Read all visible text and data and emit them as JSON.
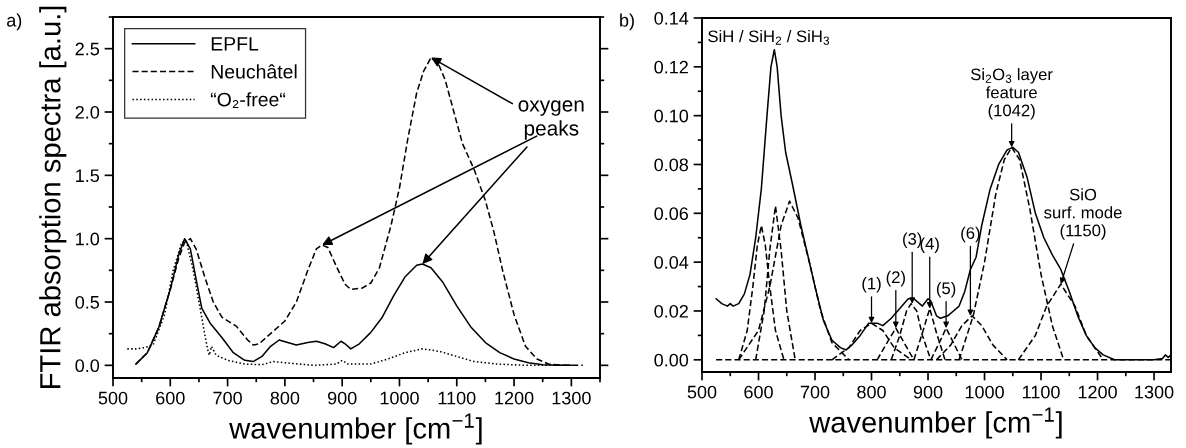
{
  "chart_data": [
    {
      "type": "line",
      "xlabel": "wavenumber [cm$^{−1}$]",
      "ylabel": "FTIR absorption spectra [a.u.]",
      "xlim": [
        500,
        1350
      ],
      "ylim": [
        -0.1,
        2.75
      ],
      "xticks": [
        500,
        600,
        700,
        800,
        900,
        1000,
        1100,
        1200,
        1300
      ],
      "yticks": [
        {
          "value": 0,
          "label": "0.0"
        },
        0.5,
        {
          "value": 1,
          "label": "1.0"
        },
        1.5,
        {
          "value": 2,
          "label": "2.0"
        },
        2.5
      ],
      "legend": "top left",
      "grid": false,
      "annotations": [
        "a)",
        {
          "text": "oxygen\npeaks",
          "x": 1055,
          "y": 2.43
        }
      ],
      "series": [
        {
          "name": "EPFL",
          "color": "#000000",
          "line_style": "solid",
          "x": [
            540,
            560,
            580,
            600,
            615,
            625,
            635,
            645,
            655,
            670,
            690,
            710,
            730,
            745,
            760,
            775,
            790,
            805,
            820,
            840,
            855,
            870,
            885,
            898,
            905,
            915,
            930,
            950,
            970,
            990,
            1010,
            1030,
            1040,
            1055,
            1075,
            1100,
            1125,
            1150,
            1175,
            1200,
            1225,
            1250,
            1280,
            1300
          ],
          "values": [
            0.01,
            0.1,
            0.3,
            0.6,
            0.88,
            1.0,
            0.92,
            0.68,
            0.45,
            0.33,
            0.22,
            0.1,
            0.04,
            0.03,
            0.07,
            0.15,
            0.2,
            0.18,
            0.16,
            0.18,
            0.19,
            0.17,
            0.14,
            0.19,
            0.17,
            0.13,
            0.17,
            0.26,
            0.38,
            0.55,
            0.7,
            0.79,
            0.8,
            0.77,
            0.66,
            0.47,
            0.3,
            0.18,
            0.1,
            0.05,
            0.02,
            0.005,
            0.0,
            0.0
          ]
        },
        {
          "name": "Neuchâtel",
          "color": "#000000",
          "line_style": "dashed",
          "x": [
            540,
            560,
            580,
            600,
            615,
            625,
            635,
            645,
            660,
            675,
            690,
            715,
            735,
            745,
            755,
            775,
            800,
            820,
            840,
            855,
            865,
            875,
            890,
            905,
            915,
            935,
            950,
            965,
            985,
            1000,
            1015,
            1030,
            1042,
            1055,
            1068,
            1080,
            1095,
            1110,
            1130,
            1150,
            1165,
            1180,
            1200,
            1220,
            1240,
            1260,
            1290,
            1320
          ],
          "values": [
            0.01,
            0.1,
            0.3,
            0.6,
            0.85,
            0.97,
            1.0,
            0.92,
            0.7,
            0.5,
            0.38,
            0.31,
            0.2,
            0.16,
            0.17,
            0.25,
            0.35,
            0.5,
            0.75,
            0.92,
            0.95,
            0.93,
            0.78,
            0.64,
            0.6,
            0.61,
            0.65,
            0.77,
            1.1,
            1.4,
            1.8,
            2.15,
            2.32,
            2.43,
            2.38,
            2.25,
            2.0,
            1.75,
            1.55,
            1.3,
            1.05,
            0.75,
            0.4,
            0.15,
            0.05,
            0.01,
            0.0,
            0.0
          ]
        },
        {
          "name": "“O₂-free“",
          "color": "#000000",
          "line_style": "dotted",
          "x": [
            525,
            540,
            555,
            570,
            590,
            605,
            620,
            628,
            640,
            650,
            660,
            665,
            668,
            672,
            680,
            700,
            730,
            760,
            780,
            800,
            850,
            890,
            900,
            910,
            950,
            980,
            1010,
            1040,
            1070,
            1100,
            1130,
            1170,
            1220,
            1300
          ],
          "values": [
            0.13,
            0.13,
            0.14,
            0.16,
            0.4,
            0.75,
            0.97,
            0.98,
            0.75,
            0.5,
            0.25,
            0.13,
            0.08,
            0.15,
            0.08,
            0.04,
            0.01,
            0.005,
            0.03,
            0.02,
            0.0,
            0.01,
            0.04,
            0.01,
            0.01,
            0.05,
            0.1,
            0.13,
            0.11,
            0.07,
            0.03,
            0.01,
            0.0,
            0.0
          ]
        }
      ]
    },
    {
      "type": "line",
      "xlabel": "wavenumber [cm$^{−1}$]",
      "xlim": [
        500,
        1330
      ],
      "ylim": [
        -0.005,
        0.14
      ],
      "xticks": [
        500,
        600,
        700,
        800,
        900,
        1000,
        1100,
        1200,
        1300
      ],
      "yticks": [
        {
          "value": 0,
          "label": "0.00"
        },
        {
          "value": 0.02,
          "label": "0.02"
        },
        {
          "value": 0.04,
          "label": "0.04"
        },
        {
          "value": 0.06,
          "label": "0.06"
        },
        {
          "value": 0.08,
          "label": "0.08"
        },
        {
          "value": 0.1,
          "label": "0.10"
        },
        {
          "value": 0.12,
          "label": "0.12"
        },
        {
          "value": 0.14,
          "label": "0.14"
        }
      ],
      "grid": false,
      "annotations": [
        "b)",
        {
          "text": "SiH / SiH$_{2}$ / SiH$_{3}$",
          "x": 628,
          "y": 0.127
        },
        {
          "text": "(1)",
          "x": 800,
          "y": 0.015
        },
        {
          "text": "(2)",
          "x": 843,
          "y": 0.013
        },
        {
          "text": "(3)",
          "x": 872,
          "y": 0.023
        },
        {
          "text": "(4)",
          "x": 903,
          "y": 0.021
        },
        {
          "text": "(5)",
          "x": 932,
          "y": 0.013
        },
        {
          "text": "(6)",
          "x": 975,
          "y": 0.018
        },
        {
          "text": "Si$_{2}$O$_{3}$ layer\nfeature\n(1042)",
          "x": 1048,
          "y": 0.087
        },
        {
          "text": "SiO\nsurf. mode\n(1150)",
          "x": 1135,
          "y": 0.031
        }
      ],
      "series": [
        {
          "color": "#000000",
          "line_style": "solid",
          "x": [
            525,
            535,
            545,
            550,
            555,
            565,
            575,
            585,
            595,
            605,
            615,
            622,
            628,
            633,
            640,
            648,
            660,
            675,
            690,
            700,
            715,
            730,
            745,
            755,
            765,
            780,
            795,
            810,
            820,
            835,
            850,
            865,
            875,
            890,
            900,
            905,
            915,
            922,
            935,
            945,
            955,
            965,
            975,
            985,
            995,
            1010,
            1025,
            1040,
            1050,
            1060,
            1075,
            1090,
            1105,
            1120,
            1135,
            1150,
            1165,
            1180,
            1195,
            1210,
            1230,
            1260,
            1300,
            1315,
            1320,
            1325,
            1330
          ],
          "values": [
            0.025,
            0.023,
            0.022,
            0.023,
            0.022,
            0.023,
            0.027,
            0.035,
            0.05,
            0.07,
            0.1,
            0.12,
            0.127,
            0.12,
            0.1,
            0.085,
            0.072,
            0.055,
            0.04,
            0.03,
            0.016,
            0.008,
            0.005,
            0.004,
            0.006,
            0.01,
            0.015,
            0.015,
            0.014,
            0.017,
            0.021,
            0.025,
            0.025,
            0.022,
            0.025,
            0.024,
            0.018,
            0.017,
            0.018,
            0.02,
            0.022,
            0.028,
            0.037,
            0.042,
            0.055,
            0.07,
            0.08,
            0.086,
            0.087,
            0.085,
            0.075,
            0.06,
            0.05,
            0.043,
            0.037,
            0.028,
            0.018,
            0.01,
            0.005,
            0.002,
            0.0,
            0.0,
            0.0,
            0.0005,
            0.002,
            0.001,
            0.002
          ]
        },
        {
          "color": "#000000",
          "line_style": "dashed",
          "x": [
            525,
            1330
          ],
          "values": [
            0,
            0
          ]
        },
        {
          "color": "#000000",
          "line_style": "dashed",
          "x": [
            565,
            580,
            590,
            598,
            605,
            612,
            620,
            630,
            645
          ],
          "values": [
            0,
            0.012,
            0.03,
            0.047,
            0.055,
            0.047,
            0.03,
            0.012,
            0
          ]
        },
        {
          "color": "#000000",
          "line_style": "dashed",
          "x": [
            595,
            610,
            620,
            630,
            640,
            650,
            665
          ],
          "values": [
            0,
            0.02,
            0.045,
            0.063,
            0.045,
            0.02,
            0
          ]
        },
        {
          "color": "#000000",
          "line_style": "dashed",
          "x": [
            565,
            600,
            620,
            640,
            655,
            670,
            690,
            710,
            730,
            760
          ],
          "values": [
            0,
            0.012,
            0.03,
            0.055,
            0.065,
            0.058,
            0.04,
            0.02,
            0.007,
            0
          ]
        },
        {
          "color": "#000000",
          "line_style": "dashed",
          "x": [
            730,
            760,
            780,
            800,
            820,
            840,
            870
          ],
          "values": [
            0,
            0.005,
            0.012,
            0.015,
            0.012,
            0.005,
            0
          ]
        },
        {
          "color": "#000000",
          "line_style": "dashed",
          "x": [
            810,
            825,
            843,
            860,
            875
          ],
          "values": [
            0,
            0.006,
            0.013,
            0.006,
            0
          ]
        },
        {
          "color": "#000000",
          "line_style": "dashed",
          "x": [
            835,
            850,
            862,
            870,
            880,
            890,
            905
          ],
          "values": [
            0,
            0.01,
            0.02,
            0.023,
            0.02,
            0.01,
            0
          ]
        },
        {
          "color": "#000000",
          "line_style": "dashed",
          "x": [
            875,
            890,
            903,
            915,
            930
          ],
          "values": [
            0,
            0.011,
            0.021,
            0.011,
            0
          ]
        },
        {
          "color": "#000000",
          "line_style": "dashed",
          "x": [
            905,
            920,
            932,
            945,
            960
          ],
          "values": [
            0,
            0.007,
            0.013,
            0.007,
            0
          ]
        },
        {
          "color": "#000000",
          "line_style": "dashed",
          "x": [
            915,
            940,
            960,
            978,
            995,
            1015,
            1040
          ],
          "values": [
            0,
            0.006,
            0.014,
            0.018,
            0.014,
            0.006,
            0
          ]
        },
        {
          "color": "#000000",
          "line_style": "dashed",
          "x": [
            955,
            980,
            1000,
            1020,
            1035,
            1048,
            1062,
            1080,
            1100,
            1120,
            1140
          ],
          "values": [
            0,
            0.018,
            0.04,
            0.068,
            0.082,
            0.087,
            0.082,
            0.062,
            0.035,
            0.014,
            0
          ]
        },
        {
          "color": "#000000",
          "line_style": "dashed",
          "x": [
            1060,
            1090,
            1110,
            1135,
            1160,
            1180,
            1210
          ],
          "values": [
            0,
            0.01,
            0.022,
            0.031,
            0.022,
            0.01,
            0
          ]
        }
      ]
    }
  ]
}
